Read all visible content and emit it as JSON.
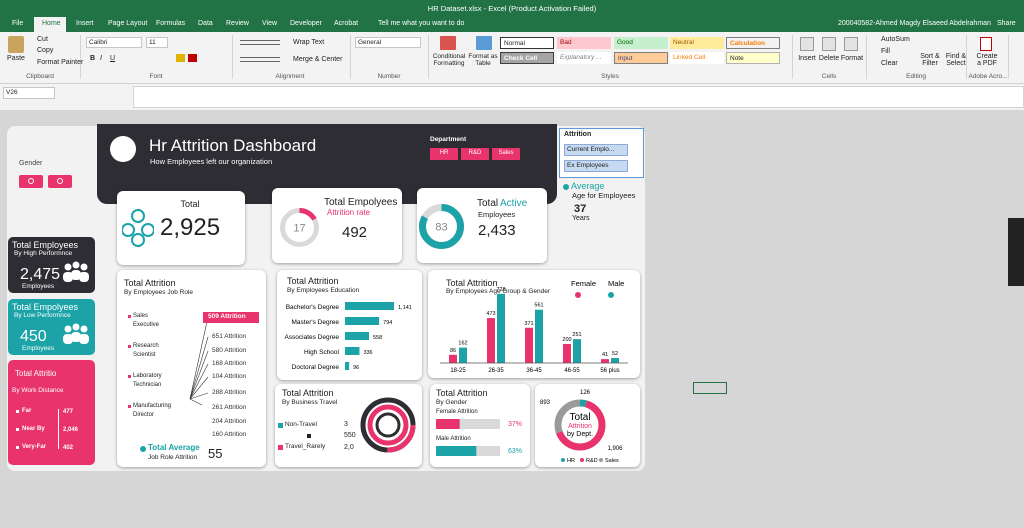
{
  "window": {
    "title": "HR Dataset.xlsx - Excel (Product Activation Failed)",
    "user": "200040582-Ahmed Magdy Elsaeed Abdelrahman",
    "share": "Share"
  },
  "tabs": [
    "File",
    "Home",
    "Insert",
    "Page Layout",
    "Formulas",
    "Data",
    "Review",
    "View",
    "Developer",
    "Acrobat"
  ],
  "tell": "Tell me what you want to do",
  "ribbon": {
    "clipboard": {
      "paste": "Paste",
      "cut": "Cut",
      "copy": "Copy",
      "painter": "Format Painter",
      "label": "Clipboard"
    },
    "font": {
      "name": "Calibri",
      "size": "11",
      "buttons": [
        "B",
        "I",
        "U"
      ],
      "label": "Font"
    },
    "alignment": {
      "wrap": "Wrap Text",
      "merge": "Merge & Center",
      "label": "Alignment"
    },
    "number": {
      "format": "General",
      "label": "Number"
    },
    "styles": {
      "conditional": "Conditional Formatting",
      "table": "Format as Table",
      "cells": [
        "Normal",
        "Bad",
        "Good",
        "Neutral",
        "Calculation",
        "Check Cell",
        "Explanatory ...",
        "Input",
        "Linked Cell",
        "Note"
      ],
      "label": "Styles"
    },
    "cells": {
      "insert": "Insert",
      "delete": "Delete",
      "format": "Format",
      "label": "Cells"
    },
    "editing": {
      "autosum": "AutoSum",
      "fill": "Fill",
      "clear": "Clear",
      "sort": "Sort & Filter",
      "find": "Find & Select",
      "label": "Editing"
    },
    "adobe": {
      "create": "Create a PDF",
      "label": "Adobe Acro..."
    }
  },
  "name_box": "V26",
  "dashboard": {
    "header": {
      "title": "Hr Attrition Dashboard",
      "subtitle": "How Employees left our organization"
    },
    "department": {
      "label": "Department",
      "items": [
        "HR",
        "R&D",
        "Sales"
      ]
    },
    "gender": {
      "label": "Gender"
    },
    "attrition_filter": {
      "label": "Attrition",
      "items": [
        "Current Emplo...",
        "Ex Employees"
      ]
    },
    "total": {
      "label": "Total",
      "value": "2,925"
    },
    "total_employees": {
      "title": "Total Empolyees",
      "subtitle": "Attrition rate",
      "rate": 17,
      "value": "492"
    },
    "active": {
      "title_1": "Total",
      "title_2": "Active",
      "subtitle": "Employees",
      "rate": 83,
      "value": "2,433"
    },
    "age": {
      "title": "Average",
      "subtitle": "Age for Employees",
      "value": "37",
      "unit": "Years"
    },
    "high": {
      "title": "Total Employees",
      "subtitle": "By High Performnce",
      "value": "2,475",
      "unit": "Employees"
    },
    "low": {
      "title": "Total Empolyees",
      "subtitle": "By Low Performnce",
      "value": "450",
      "unit": "Employees"
    },
    "distance": {
      "title": "Total Attritio",
      "subtitle": "By Work Distance",
      "rows": [
        [
          "Far",
          "477"
        ],
        [
          "Near By",
          "2,046"
        ],
        [
          "Very-Far",
          "402"
        ]
      ]
    },
    "job_role": {
      "title": "Total Attrition",
      "subtitle": "By Employees Job Role",
      "roles": [
        "Sales Executive",
        "Research Scientist",
        "Laboratory Technician",
        "Manufacturing Director"
      ],
      "labels": [
        "509 Attrition",
        "651 Attrition",
        "580 Attrition",
        "168 Attrition",
        "104 Attrition",
        "288 Attrition",
        "261 Attrition",
        "204 Attrition",
        "160 Attrition"
      ],
      "average_title": "Total Average",
      "average_subtitle": "Job Role Attrition",
      "average": "55"
    },
    "education": {
      "type": "bar",
      "title": "Total Attrition",
      "subtitle": "By Employees Education",
      "color": "#1ba3a8",
      "categories": [
        "Bachelor's Degree",
        "Master's Degree",
        "Associates Degree",
        "High School",
        "Doctoral Degree"
      ],
      "values": [
        1141,
        794,
        558,
        336,
        96
      ],
      "value_labels": [
        "1,141",
        "794",
        "558",
        "336",
        "96"
      ]
    },
    "age_gender": {
      "type": "bar",
      "title": "Total Attrition",
      "subtitle": "By Employees Age Group & Gender",
      "categories": [
        "18-25",
        "26-35",
        "36-45",
        "46-55",
        "56 plus"
      ],
      "series": [
        {
          "name": "Female",
          "color": "#e8336d",
          "values": [
            86,
            473,
            371,
            200,
            41
          ]
        },
        {
          "name": "Male",
          "color": "#1ba3a8",
          "values": [
            162,
            728,
            561,
            251,
            52
          ]
        }
      ]
    },
    "travel": {
      "title": "Total Attrition",
      "subtitle": "By Business Travel",
      "legend": [
        "Non-Travel",
        "Travel_Rarely"
      ],
      "labels": [
        "3",
        "550",
        "2,0"
      ]
    },
    "gender_attrition": {
      "type": "bar",
      "title": "Total Attrition",
      "subtitle": "By Gender",
      "categories": [
        "Female Attrition",
        "Male Attrition"
      ],
      "values": [
        37,
        63
      ],
      "value_labels": [
        "37%",
        "63%"
      ],
      "colors": [
        "#e8336d",
        "#1ba3a8"
      ]
    },
    "dept": {
      "type": "pie",
      "title_1": "Total",
      "title_2": "Attrition",
      "title_3": "by Dept.",
      "series": [
        {
          "name": "HR",
          "color": "#1ba3a8",
          "value": 126,
          "label": "126"
        },
        {
          "name": "R&D",
          "color": "#e8336d",
          "value": 1906,
          "label": "1,906"
        },
        {
          "name": "Sales",
          "color": "#9a9a9a",
          "value": 893,
          "label": "893"
        }
      ]
    }
  }
}
